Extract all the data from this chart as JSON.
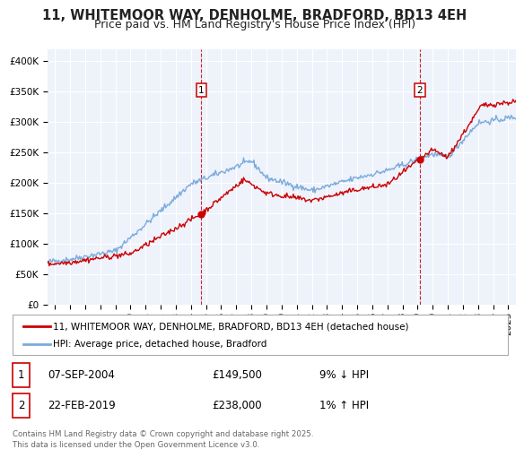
{
  "title": "11, WHITEMOOR WAY, DENHOLME, BRADFORD, BD13 4EH",
  "subtitle": "Price paid vs. HM Land Registry's House Price Index (HPI)",
  "background_color": "#ffffff",
  "plot_bg_color": "#eef2fb",
  "grid_color": "#ffffff",
  "ylim": [
    0,
    420000
  ],
  "yticks": [
    0,
    50000,
    100000,
    150000,
    200000,
    250000,
    300000,
    350000,
    400000
  ],
  "ytick_labels": [
    "£0",
    "£50K",
    "£100K",
    "£150K",
    "£200K",
    "£250K",
    "£300K",
    "£350K",
    "£400K"
  ],
  "xlim_start": 1994.5,
  "xlim_end": 2025.5,
  "xticks": [
    1995,
    1996,
    1997,
    1998,
    1999,
    2000,
    2001,
    2002,
    2003,
    2004,
    2005,
    2006,
    2007,
    2008,
    2009,
    2010,
    2011,
    2012,
    2013,
    2014,
    2015,
    2016,
    2017,
    2018,
    2019,
    2020,
    2021,
    2022,
    2023,
    2024,
    2025
  ],
  "property_color": "#cc0000",
  "hpi_color": "#7aabdb",
  "marker_color": "#cc0000",
  "vline_color": "#cc0000",
  "sale1_x": 2004.69,
  "sale1_y": 149500,
  "sale1_label": "1",
  "sale2_x": 2019.14,
  "sale2_y": 238000,
  "sale2_label": "2",
  "legend_property": "11, WHITEMOOR WAY, DENHOLME, BRADFORD, BD13 4EH (detached house)",
  "legend_hpi": "HPI: Average price, detached house, Bradford",
  "table_row1": [
    "1",
    "07-SEP-2004",
    "£149,500",
    "9% ↓ HPI"
  ],
  "table_row2": [
    "2",
    "22-FEB-2019",
    "£238,000",
    "1% ↑ HPI"
  ],
  "footer": "Contains HM Land Registry data © Crown copyright and database right 2025.\nThis data is licensed under the Open Government Licence v3.0.",
  "title_fontsize": 10.5,
  "subtitle_fontsize": 9,
  "tick_fontsize": 7.5,
  "legend_fontsize": 7.5,
  "table_fontsize": 8.5
}
